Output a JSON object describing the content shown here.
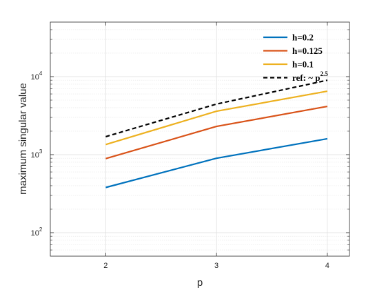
{
  "chart_data": {
    "type": "line",
    "xlabel": "p",
    "ylabel": "maximum singular value",
    "xlim": [
      1.5,
      4.2
    ],
    "ylim": [
      50,
      50000
    ],
    "yscale": "log",
    "x_ticks": [
      2,
      3,
      4
    ],
    "x_tick_labels": [
      "2",
      "3",
      "4"
    ],
    "y_ticks": [
      100,
      1000,
      10000
    ],
    "y_tick_labels": [
      {
        "base": "10",
        "exp": "2"
      },
      {
        "base": "10",
        "exp": "3"
      },
      {
        "base": "10",
        "exp": "4"
      }
    ],
    "grid": true,
    "minor_grid": true,
    "legend_position": "top-right",
    "series": [
      {
        "name": "h=0.2",
        "x": [
          2,
          3,
          4
        ],
        "values": [
          380,
          900,
          1600
        ],
        "color": "#0072BD",
        "style": "solid"
      },
      {
        "name": "h=0.125",
        "x": [
          2,
          3,
          4
        ],
        "values": [
          890,
          2300,
          4150
        ],
        "color": "#D95319",
        "style": "solid"
      },
      {
        "name": "h=0.1",
        "x": [
          2,
          3,
          4
        ],
        "values": [
          1350,
          3600,
          6500
        ],
        "color": "#EDB120",
        "style": "solid"
      },
      {
        "name": "ref: ~ p",
        "name_sup": "2.5",
        "x": [
          2,
          3,
          4
        ],
        "values": [
          1700,
          4450,
          9000
        ],
        "color": "#000000",
        "style": "dashed"
      }
    ]
  }
}
